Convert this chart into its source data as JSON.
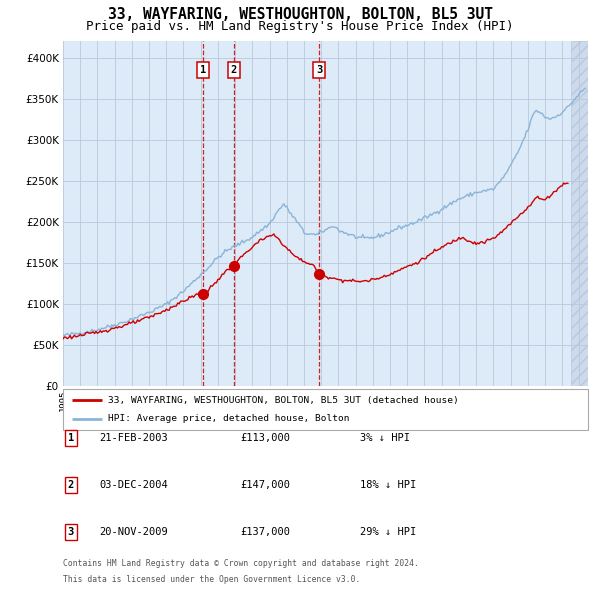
{
  "title": "33, WAYFARING, WESTHOUGHTON, BOLTON, BL5 3UT",
  "subtitle": "Price paid vs. HM Land Registry's House Price Index (HPI)",
  "legend_line1": "33, WAYFARING, WESTHOUGHTON, BOLTON, BL5 3UT (detached house)",
  "legend_line2": "HPI: Average price, detached house, Bolton",
  "footer1": "Contains HM Land Registry data © Crown copyright and database right 2024.",
  "footer2": "This data is licensed under the Open Government Licence v3.0.",
  "transactions": [
    {
      "num": 1,
      "date": "21-FEB-2003",
      "price": 113000,
      "hpi_diff": "3% ↓ HPI"
    },
    {
      "num": 2,
      "date": "03-DEC-2004",
      "price": 147000,
      "hpi_diff": "18% ↓ HPI"
    },
    {
      "num": 3,
      "date": "20-NOV-2009",
      "price": 137000,
      "hpi_diff": "29% ↓ HPI"
    }
  ],
  "transaction_dates_decimal": [
    2003.13,
    2004.92,
    2009.89
  ],
  "transaction_prices": [
    113000,
    147000,
    137000
  ],
  "hpi_color": "#8ab4d8",
  "price_color": "#cc0000",
  "dot_color": "#cc0000",
  "background_color": "#ddeaf7",
  "hatch_bg_color": "#ccdaec",
  "ylim": [
    0,
    420000
  ],
  "yticks": [
    0,
    50000,
    100000,
    150000,
    200000,
    250000,
    300000,
    350000,
    400000
  ],
  "xmin": 1995.0,
  "xmax": 2025.5,
  "grid_color": "#b8c8dc",
  "title_fontsize": 10.5,
  "subtitle_fontsize": 9.0,
  "hatch_start": 2024.5
}
